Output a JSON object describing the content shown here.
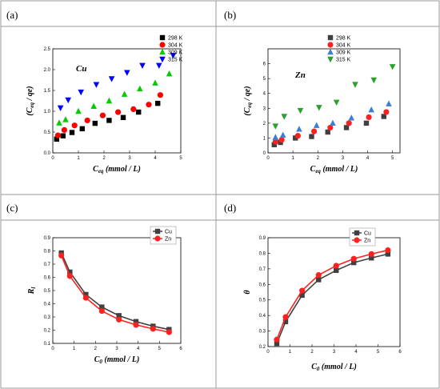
{
  "panels": [
    {
      "label": "(a)"
    },
    {
      "label": "(b)"
    },
    {
      "label": "(c)"
    },
    {
      "label": "(d)"
    }
  ],
  "chart_data": [
    {
      "type": "scatter",
      "xlabel": "Ceq (mmol / L)",
      "ylabel": "(Ceq / qe)",
      "annotation": "Cu",
      "xlim": [
        0,
        5
      ],
      "ylim": [
        0,
        2.5
      ],
      "xticks": [
        "0",
        "1",
        "2",
        "3",
        "4",
        "5"
      ],
      "yticks": [
        "0.0",
        "0.5",
        "1.0",
        "1.5",
        "2.0",
        "2.5"
      ],
      "legend": "top-right",
      "series": [
        {
          "name": "298 K",
          "color": "#000000",
          "marker": "square",
          "x": [
            0.15,
            0.4,
            0.75,
            1.15,
            1.65,
            2.2,
            2.75,
            3.35,
            4.1
          ],
          "y": [
            0.33,
            0.41,
            0.49,
            0.58,
            0.71,
            0.78,
            0.85,
            0.98,
            1.19
          ]
        },
        {
          "name": "304 K",
          "color": "#ff0000",
          "marker": "circle",
          "x": [
            0.2,
            0.45,
            0.85,
            1.35,
            1.95,
            2.55,
            3.15,
            3.75,
            4.2
          ],
          "y": [
            0.42,
            0.55,
            0.66,
            0.78,
            0.9,
            0.98,
            1.05,
            1.16,
            1.39
          ]
        },
        {
          "name": "309 K",
          "color": "#00cc00",
          "marker": "triangle-up",
          "x": [
            0.25,
            0.5,
            1.0,
            1.6,
            2.2,
            2.8,
            3.4,
            4.0,
            4.55
          ],
          "y": [
            0.72,
            0.8,
            1.0,
            1.12,
            1.25,
            1.41,
            1.54,
            1.68,
            1.9
          ]
        },
        {
          "name": "315 K",
          "color": "#0000ff",
          "marker": "triangle-down",
          "x": [
            0.3,
            0.6,
            1.1,
            1.7,
            2.3,
            2.9,
            3.5,
            4.15,
            4.7
          ],
          "y": [
            1.08,
            1.27,
            1.46,
            1.64,
            1.78,
            1.93,
            2.1,
            2.1,
            2.34
          ]
        }
      ]
    },
    {
      "type": "scatter",
      "xlabel": "Ceq (mmol / L)",
      "ylabel": "(Ceq / qe)",
      "annotation": "Zn",
      "xlim": [
        0,
        5.3
      ],
      "ylim": [
        0,
        7
      ],
      "xticks": [
        "0",
        "1",
        "2",
        "3",
        "4",
        "5"
      ],
      "yticks": [
        "0",
        "1",
        "2",
        "3",
        "4",
        "5",
        "6"
      ],
      "legend": "top-right",
      "series": [
        {
          "name": "298 K",
          "color": "#404040",
          "marker": "square",
          "x": [
            0.25,
            0.5,
            1.1,
            1.75,
            2.4,
            3.15,
            3.95,
            4.65
          ],
          "y": [
            0.55,
            0.7,
            1.0,
            1.1,
            1.4,
            1.7,
            2.0,
            2.45
          ]
        },
        {
          "name": "304 K",
          "color": "#ff2020",
          "marker": "circle",
          "x": [
            0.3,
            0.55,
            1.2,
            1.85,
            2.5,
            3.25,
            4.05,
            4.75
          ],
          "y": [
            0.75,
            0.88,
            1.15,
            1.45,
            1.7,
            2.0,
            2.4,
            2.75
          ]
        },
        {
          "name": "309 K",
          "color": "#3a7fd5",
          "marker": "triangle-up",
          "x": [
            0.3,
            0.6,
            1.25,
            1.95,
            2.6,
            3.35,
            4.15,
            4.85
          ],
          "y": [
            1.05,
            1.2,
            1.6,
            1.85,
            2.0,
            2.35,
            2.9,
            3.3
          ]
        },
        {
          "name": "315 K",
          "color": "#2ca02c",
          "marker": "triangle-down",
          "x": [
            0.3,
            0.65,
            1.3,
            2.05,
            2.75,
            3.5,
            4.25,
            5.0
          ],
          "y": [
            1.8,
            2.45,
            2.85,
            3.05,
            3.4,
            4.6,
            4.9,
            5.8
          ]
        }
      ]
    },
    {
      "type": "line",
      "xlabel": "C0 (mmol / L)",
      "ylabel": "Rl",
      "xlim": [
        0,
        6
      ],
      "ylim": [
        0.1,
        0.9
      ],
      "xticks": [
        "0",
        "1",
        "2",
        "3",
        "4",
        "5",
        "6"
      ],
      "yticks": [
        "0.1",
        "0.2",
        "0.3",
        "0.4",
        "0.5",
        "0.6",
        "0.7",
        "0.8",
        "0.9"
      ],
      "legend": "top-right",
      "series": [
        {
          "name": "Cu",
          "color": "#404040",
          "marker": "square",
          "x": [
            0.4,
            0.8,
            1.55,
            2.3,
            3.1,
            3.9,
            4.7,
            5.45
          ],
          "y": [
            0.785,
            0.64,
            0.47,
            0.375,
            0.31,
            0.265,
            0.23,
            0.205
          ]
        },
        {
          "name": "Zn",
          "color": "#ff2020",
          "marker": "circle",
          "x": [
            0.4,
            0.8,
            1.55,
            2.3,
            3.1,
            3.9,
            4.7,
            5.45
          ],
          "y": [
            0.765,
            0.61,
            0.445,
            0.345,
            0.28,
            0.24,
            0.21,
            0.185
          ]
        }
      ]
    },
    {
      "type": "line",
      "xlabel": "C0 (mmol / L)",
      "ylabel": "θ",
      "xlim": [
        0,
        6
      ],
      "ylim": [
        0.2,
        0.9
      ],
      "xticks": [
        "0",
        "1",
        "2",
        "3",
        "4",
        "5",
        "6"
      ],
      "yticks": [
        "0.2",
        "0.3",
        "0.4",
        "0.5",
        "0.6",
        "0.7",
        "0.8",
        "0.9"
      ],
      "legend": "top-right",
      "series": [
        {
          "name": "Cu",
          "color": "#404040",
          "marker": "square",
          "x": [
            0.4,
            0.8,
            1.55,
            2.3,
            3.1,
            3.9,
            4.7,
            5.45
          ],
          "y": [
            0.22,
            0.36,
            0.53,
            0.63,
            0.69,
            0.74,
            0.77,
            0.795
          ]
        },
        {
          "name": "Zn",
          "color": "#ff2020",
          "marker": "circle",
          "x": [
            0.4,
            0.8,
            1.55,
            2.3,
            3.1,
            3.9,
            4.7,
            5.45
          ],
          "y": [
            0.245,
            0.39,
            0.56,
            0.66,
            0.72,
            0.765,
            0.795,
            0.82
          ]
        }
      ]
    }
  ]
}
